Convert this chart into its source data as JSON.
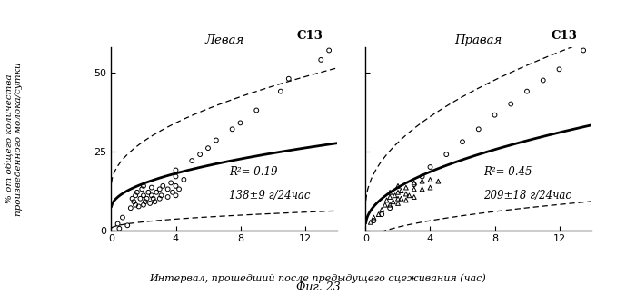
{
  "left_title": "Левая",
  "right_title": "Правая",
  "left_label": "C13",
  "right_label": "C13",
  "ylabel": "% от общего количества\nпроизведенного молока/сутки",
  "xlabel": "Интервал, прошедший после предыдущего сцеживания (час)",
  "fig_caption": "Фиг. 23",
  "xlim": [
    0,
    14
  ],
  "ylim": [
    0,
    58
  ],
  "xticks": [
    0,
    4,
    8,
    12
  ],
  "yticks": [
    0,
    25,
    50
  ],
  "left_r2": "R²= 0.19",
  "left_dose": "138±9 г/24час",
  "right_r2": "R²= 0.45",
  "right_dose": "209±18 г/24час",
  "left_line": {
    "a": 5.5,
    "b": 7.0
  },
  "left_upper_conf": {
    "a": 10.0,
    "b": 14.0
  },
  "left_lower_conf": {
    "a": 1.5,
    "b": 0.5
  },
  "right_line": {
    "a": 8.5,
    "b": 1.5
  },
  "right_upper_conf": {
    "a": 14.0,
    "b": 8.0
  },
  "right_lower_conf": {
    "a": 3.5,
    "b": -4.0
  },
  "left_scatter_circles": [
    [
      0.4,
      2.0
    ],
    [
      0.5,
      0.5
    ],
    [
      0.7,
      4.0
    ],
    [
      1.0,
      1.5
    ],
    [
      1.2,
      7.0
    ],
    [
      1.3,
      10.0
    ],
    [
      1.4,
      9.0
    ],
    [
      1.5,
      8.0
    ],
    [
      1.5,
      11.0
    ],
    [
      1.6,
      12.0
    ],
    [
      1.7,
      7.5
    ],
    [
      1.8,
      10.0
    ],
    [
      1.9,
      13.0
    ],
    [
      2.0,
      8.0
    ],
    [
      2.0,
      11.0
    ],
    [
      2.0,
      14.0
    ],
    [
      2.1,
      9.0
    ],
    [
      2.2,
      10.0
    ],
    [
      2.3,
      12.0
    ],
    [
      2.4,
      8.5
    ],
    [
      2.5,
      11.0
    ],
    [
      2.5,
      13.5
    ],
    [
      2.6,
      10.0
    ],
    [
      2.7,
      9.0
    ],
    [
      2.8,
      12.0
    ],
    [
      3.0,
      10.0
    ],
    [
      3.0,
      13.0
    ],
    [
      3.1,
      11.0
    ],
    [
      3.2,
      14.0
    ],
    [
      3.5,
      10.5
    ],
    [
      3.5,
      13.0
    ],
    [
      3.7,
      15.0
    ],
    [
      3.8,
      12.0
    ],
    [
      4.0,
      11.0
    ],
    [
      4.0,
      14.0
    ],
    [
      4.0,
      17.0
    ],
    [
      4.0,
      19.0
    ],
    [
      4.2,
      13.0
    ],
    [
      4.5,
      16.0
    ],
    [
      5.0,
      22.0
    ],
    [
      5.5,
      24.0
    ],
    [
      6.0,
      26.0
    ],
    [
      6.5,
      28.5
    ],
    [
      7.5,
      32.0
    ],
    [
      8.0,
      34.0
    ],
    [
      9.0,
      38.0
    ],
    [
      10.5,
      44.0
    ],
    [
      11.0,
      48.0
    ],
    [
      13.0,
      54.0
    ],
    [
      13.5,
      57.0
    ]
  ],
  "right_scatter_circles": [
    [
      0.5,
      3.0
    ],
    [
      1.0,
      5.0
    ],
    [
      1.5,
      7.0
    ],
    [
      3.0,
      14.5
    ],
    [
      3.5,
      17.0
    ],
    [
      4.0,
      20.0
    ],
    [
      5.0,
      24.0
    ],
    [
      6.0,
      28.0
    ],
    [
      7.0,
      32.0
    ],
    [
      8.0,
      36.5
    ],
    [
      9.0,
      40.0
    ],
    [
      10.0,
      44.0
    ],
    [
      11.0,
      47.5
    ],
    [
      12.0,
      51.0
    ],
    [
      13.5,
      57.0
    ]
  ],
  "right_scatter_triangles": [
    [
      0.3,
      2.5
    ],
    [
      0.5,
      4.0
    ],
    [
      0.8,
      5.0
    ],
    [
      1.0,
      6.5
    ],
    [
      1.2,
      8.0
    ],
    [
      1.3,
      9.5
    ],
    [
      1.5,
      8.0
    ],
    [
      1.5,
      10.5
    ],
    [
      1.5,
      12.0
    ],
    [
      1.7,
      9.0
    ],
    [
      1.8,
      11.0
    ],
    [
      2.0,
      8.5
    ],
    [
      2.0,
      10.0
    ],
    [
      2.0,
      12.0
    ],
    [
      2.0,
      14.0
    ],
    [
      2.2,
      10.0
    ],
    [
      2.2,
      12.5
    ],
    [
      2.5,
      9.5
    ],
    [
      2.5,
      11.5
    ],
    [
      2.5,
      13.5
    ],
    [
      2.7,
      11.0
    ],
    [
      3.0,
      10.5
    ],
    [
      3.0,
      13.0
    ],
    [
      3.0,
      15.0
    ],
    [
      3.5,
      13.0
    ],
    [
      3.5,
      15.5
    ],
    [
      4.0,
      13.5
    ],
    [
      4.0,
      16.0
    ],
    [
      4.5,
      15.5
    ]
  ]
}
